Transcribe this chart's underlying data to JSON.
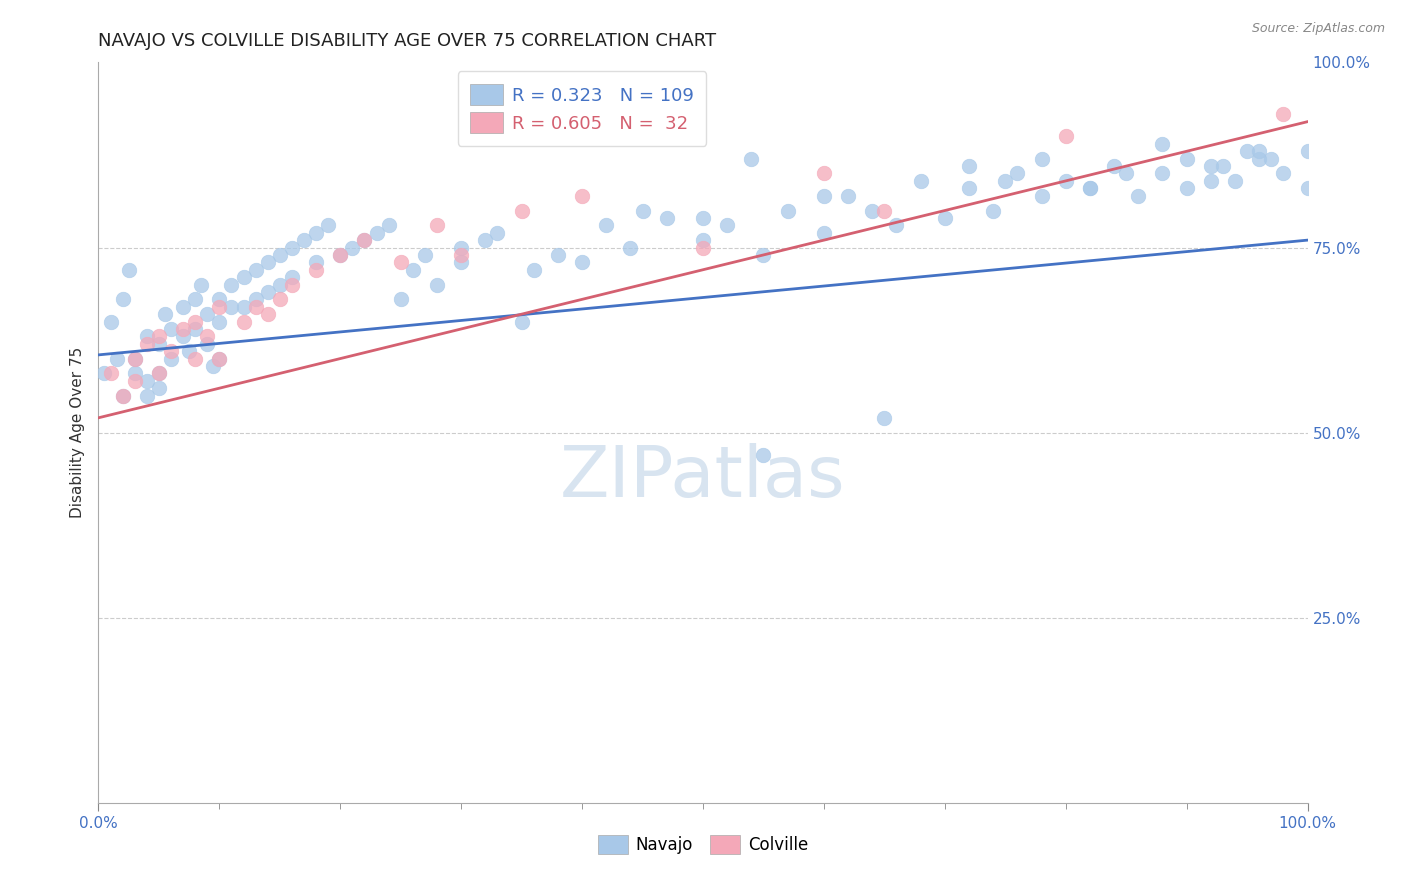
{
  "title": "NAVAJO VS COLVILLE DISABILITY AGE OVER 75 CORRELATION CHART",
  "source": "Source: ZipAtlas.com",
  "ylabel": "Disability Age Over 75",
  "xlim": [
    0.0,
    1.0
  ],
  "ylim": [
    0.0,
    1.0
  ],
  "navajo_R": 0.323,
  "navajo_N": 109,
  "colville_R": 0.605,
  "colville_N": 32,
  "navajo_color": "#A8C8E8",
  "colville_color": "#F4A8B8",
  "navajo_line_color": "#4472C4",
  "colville_line_color": "#D46070",
  "background_color": "#FFFFFF",
  "watermark_color": "#D8E4F0",
  "navajo_x": [
    0.005,
    0.01,
    0.015,
    0.02,
    0.02,
    0.025,
    0.03,
    0.03,
    0.04,
    0.04,
    0.04,
    0.05,
    0.05,
    0.05,
    0.055,
    0.06,
    0.06,
    0.07,
    0.07,
    0.075,
    0.08,
    0.08,
    0.085,
    0.09,
    0.09,
    0.095,
    0.1,
    0.1,
    0.1,
    0.11,
    0.11,
    0.12,
    0.12,
    0.13,
    0.13,
    0.14,
    0.14,
    0.15,
    0.15,
    0.16,
    0.16,
    0.17,
    0.18,
    0.18,
    0.19,
    0.2,
    0.21,
    0.22,
    0.23,
    0.24,
    0.25,
    0.26,
    0.27,
    0.28,
    0.3,
    0.3,
    0.32,
    0.33,
    0.35,
    0.36,
    0.38,
    0.4,
    0.42,
    0.44,
    0.45,
    0.47,
    0.5,
    0.52,
    0.55,
    0.57,
    0.6,
    0.62,
    0.64,
    0.66,
    0.68,
    0.7,
    0.72,
    0.74,
    0.76,
    0.78,
    0.8,
    0.82,
    0.84,
    0.86,
    0.88,
    0.9,
    0.92,
    0.94,
    0.96,
    0.98,
    1.0,
    0.54,
    0.6,
    0.72,
    0.75,
    0.78,
    0.82,
    0.85,
    0.88,
    0.92,
    0.95,
    0.97,
    1.0,
    0.9,
    0.93,
    0.96,
    0.5,
    0.55,
    0.65
  ],
  "navajo_y": [
    0.58,
    0.65,
    0.6,
    0.55,
    0.68,
    0.72,
    0.6,
    0.58,
    0.63,
    0.57,
    0.55,
    0.62,
    0.58,
    0.56,
    0.66,
    0.64,
    0.6,
    0.67,
    0.63,
    0.61,
    0.68,
    0.64,
    0.7,
    0.66,
    0.62,
    0.59,
    0.68,
    0.65,
    0.6,
    0.7,
    0.67,
    0.71,
    0.67,
    0.72,
    0.68,
    0.73,
    0.69,
    0.74,
    0.7,
    0.75,
    0.71,
    0.76,
    0.77,
    0.73,
    0.78,
    0.74,
    0.75,
    0.76,
    0.77,
    0.78,
    0.68,
    0.72,
    0.74,
    0.7,
    0.75,
    0.73,
    0.76,
    0.77,
    0.65,
    0.72,
    0.74,
    0.73,
    0.78,
    0.75,
    0.8,
    0.79,
    0.76,
    0.78,
    0.74,
    0.8,
    0.77,
    0.82,
    0.8,
    0.78,
    0.84,
    0.79,
    0.83,
    0.8,
    0.85,
    0.82,
    0.84,
    0.83,
    0.86,
    0.82,
    0.85,
    0.83,
    0.86,
    0.84,
    0.87,
    0.85,
    0.88,
    0.87,
    0.82,
    0.86,
    0.84,
    0.87,
    0.83,
    0.85,
    0.89,
    0.84,
    0.88,
    0.87,
    0.83,
    0.87,
    0.86,
    0.88,
    0.79,
    0.47,
    0.52
  ],
  "colville_x": [
    0.01,
    0.02,
    0.03,
    0.03,
    0.04,
    0.05,
    0.05,
    0.06,
    0.07,
    0.08,
    0.08,
    0.09,
    0.1,
    0.1,
    0.12,
    0.13,
    0.14,
    0.15,
    0.16,
    0.18,
    0.2,
    0.22,
    0.25,
    0.28,
    0.3,
    0.35,
    0.4,
    0.5,
    0.6,
    0.65,
    0.8,
    0.98
  ],
  "colville_y": [
    0.58,
    0.55,
    0.6,
    0.57,
    0.62,
    0.58,
    0.63,
    0.61,
    0.64,
    0.6,
    0.65,
    0.63,
    0.67,
    0.6,
    0.65,
    0.67,
    0.66,
    0.68,
    0.7,
    0.72,
    0.74,
    0.76,
    0.73,
    0.78,
    0.74,
    0.8,
    0.82,
    0.75,
    0.85,
    0.8,
    0.9,
    0.93
  ],
  "navajo_line_intercept": 0.605,
  "navajo_line_slope": 0.155,
  "colville_line_intercept": 0.52,
  "colville_line_slope": 0.4
}
